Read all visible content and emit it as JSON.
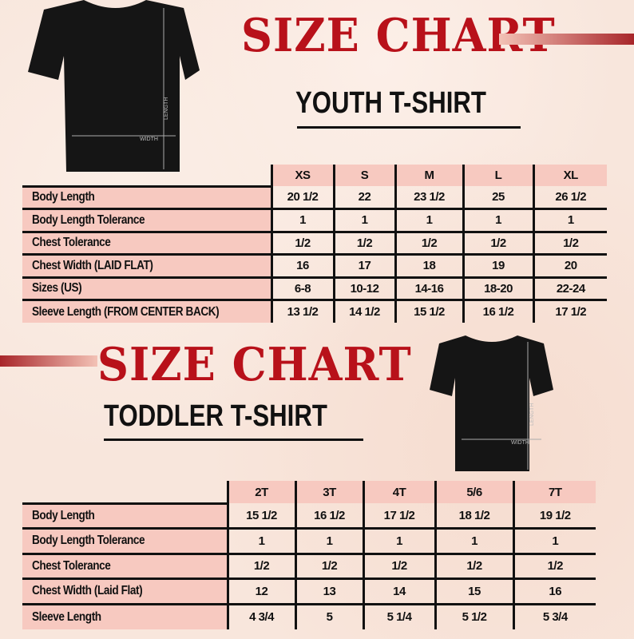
{
  "youth": {
    "title": "SIZE CHART",
    "subtitle": "YOUTH T-SHIRT",
    "shirt": {
      "length_label": "LENGTH",
      "width_label": "WIDTH"
    },
    "headers": [
      "XS",
      "S",
      "M",
      "L",
      "XL"
    ],
    "rows": [
      {
        "label": "Body Length",
        "values": [
          "20 1/2",
          "22",
          "23 1/2",
          "25",
          "26 1/2"
        ]
      },
      {
        "label": "Body Length Tolerance",
        "values": [
          "1",
          "1",
          "1",
          "1",
          "1"
        ]
      },
      {
        "label": "Chest Tolerance",
        "values": [
          "1/2",
          "1/2",
          "1/2",
          "1/2",
          "1/2"
        ]
      },
      {
        "label": "Chest Width (LAID FLAT)",
        "values": [
          "16",
          "17",
          "18",
          "19",
          "20"
        ]
      },
      {
        "label": "Sizes (US)",
        "values": [
          "6-8",
          "10-12",
          "14-16",
          "18-20",
          "22-24"
        ]
      },
      {
        "label": "Sleeve Length (FROM CENTER BACK)",
        "values": [
          "13 1/2",
          "14 1/2",
          "15 1/2",
          "16 1/2",
          "17 1/2"
        ]
      }
    ]
  },
  "toddler": {
    "title": "SIZE CHART",
    "subtitle": "TODDLER T-SHIRT",
    "shirt": {
      "length_label": "LENGTH",
      "width_label": "WIDTH"
    },
    "headers": [
      "2T",
      "3T",
      "4T",
      "5/6",
      "7T"
    ],
    "rows": [
      {
        "label": "Body Length",
        "values": [
          "15 1/2",
          "16 1/2",
          "17 1/2",
          "18 1/2",
          "19 1/2"
        ]
      },
      {
        "label": "Body Length Tolerance",
        "values": [
          "1",
          "1",
          "1",
          "1",
          "1"
        ]
      },
      {
        "label": "Chest Tolerance",
        "values": [
          "1/2",
          "1/2",
          "1/2",
          "1/2",
          "1/2"
        ]
      },
      {
        "label": "Chest Width (Laid Flat)",
        "values": [
          "12",
          "13",
          "14",
          "15",
          "16"
        ]
      },
      {
        "label": "Sleeve Length",
        "values": [
          "4 3/4",
          "5",
          "5 1/4",
          "5 1/2",
          "5 3/4"
        ]
      }
    ]
  },
  "colors": {
    "title_red": "#b8111a",
    "cell_pink": "#f7c9c0"
  }
}
